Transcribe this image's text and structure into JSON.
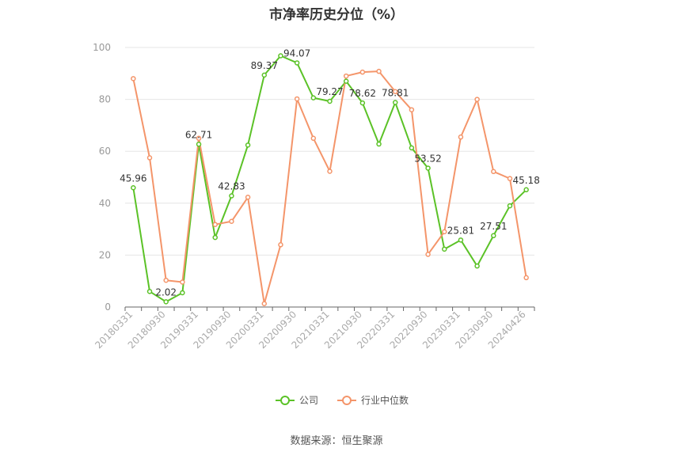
{
  "chart_data": {
    "type": "line",
    "title": "市净率历史分位（%）",
    "xlabel": "",
    "ylabel": "",
    "ylim": [
      0,
      100
    ],
    "yticks": [
      0,
      20,
      40,
      60,
      80,
      100
    ],
    "grid": true,
    "legend_position": "bottom",
    "x": [
      "20180331",
      "20180630",
      "20180930",
      "20181231",
      "20190331",
      "20190630",
      "20190930",
      "20191231",
      "20200331",
      "20200630",
      "20200930",
      "20201231",
      "20210331",
      "20210630",
      "20210930",
      "20211231",
      "20220331",
      "20220630",
      "20220930",
      "20221231",
      "20230331",
      "20230630",
      "20230930",
      "20231231",
      "20240426"
    ],
    "x_tick_labels": [
      "20180331",
      "20180930",
      "20190331",
      "20190930",
      "20200331",
      "20200930",
      "20210331",
      "20210930",
      "20220331",
      "20220930",
      "20230331",
      "20230930",
      "20240426"
    ],
    "series": [
      {
        "name": "公司",
        "color": "#5bc227",
        "values": [
          45.96,
          6.0,
          2.02,
          5.5,
          62.71,
          26.8,
          42.83,
          62.4,
          89.37,
          96.8,
          94.07,
          80.6,
          79.27,
          87.0,
          78.62,
          62.8,
          78.81,
          61.3,
          53.52,
          22.3,
          25.81,
          15.8,
          27.51,
          39.0,
          45.18
        ],
        "labels": [
          "45.96",
          "",
          "2.02",
          "",
          "62.71",
          "",
          "42.83",
          "",
          "89.37",
          "",
          "94.07",
          "",
          "79.27",
          "",
          "78.62",
          "",
          "78.81",
          "",
          "53.52",
          "",
          "25.81",
          "",
          "27.51",
          "",
          "45.18"
        ]
      },
      {
        "name": "行业中位数",
        "color": "#f4956a",
        "values": [
          88.0,
          57.5,
          10.3,
          9.6,
          65.0,
          31.8,
          33.0,
          42.3,
          1.3,
          24.0,
          80.2,
          65.0,
          52.3,
          89.0,
          90.5,
          90.8,
          83.0,
          76.0,
          20.3,
          29.0,
          65.5,
          80.0,
          52.2,
          49.5,
          11.3
        ]
      }
    ]
  },
  "source_text": "数据来源：恒生聚源"
}
